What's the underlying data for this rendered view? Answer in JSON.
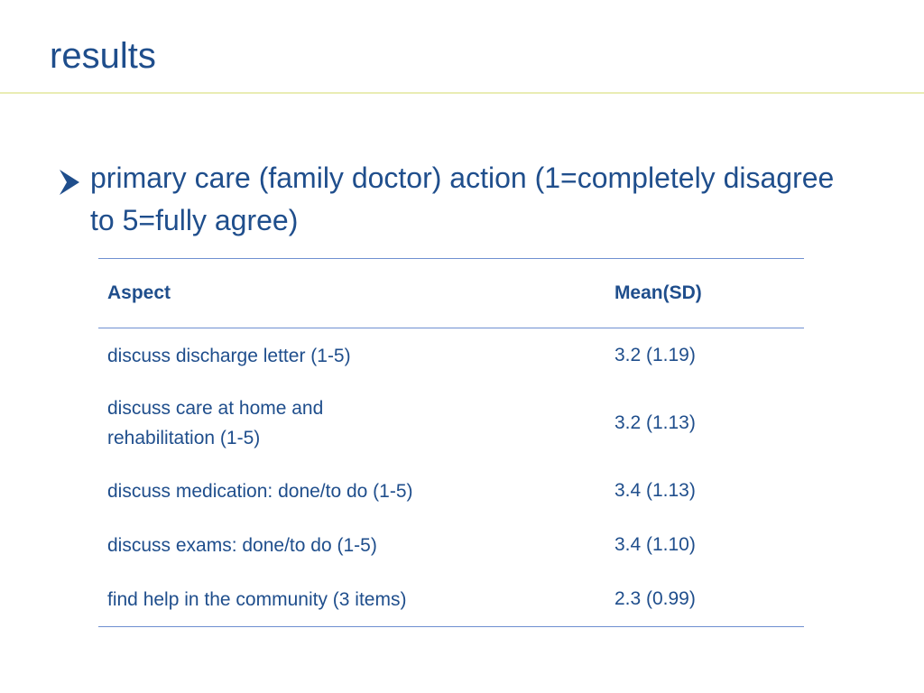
{
  "slide": {
    "title": "results"
  },
  "bullet": {
    "text": "primary care (family doctor) action (1=completely disagree to 5=fully agree)"
  },
  "table": {
    "headers": {
      "aspect": "Aspect",
      "mean": "Mean(SD)"
    },
    "rows": [
      {
        "aspect": "discuss discharge letter (1-5)",
        "mean": "3.2 (1.19)"
      },
      {
        "aspect": "discuss care at home and rehabilitation (1-5)",
        "mean": "3.2 (1.13)"
      },
      {
        "aspect": "discuss medication: done/to do (1-5)",
        "mean": "3.4 (1.13)"
      },
      {
        "aspect": "discuss exams: done/to do (1-5)",
        "mean": "3.4 (1.10)"
      },
      {
        "aspect": "find help in the community (3 items)",
        "mean": "2.3 (0.99)"
      }
    ]
  },
  "colors": {
    "text": "#1f4e8c",
    "table_rule": "#6f8fd1",
    "title_rule": "#e9edb4"
  },
  "icons": {
    "bullet": "arrow-bullet-icon"
  }
}
